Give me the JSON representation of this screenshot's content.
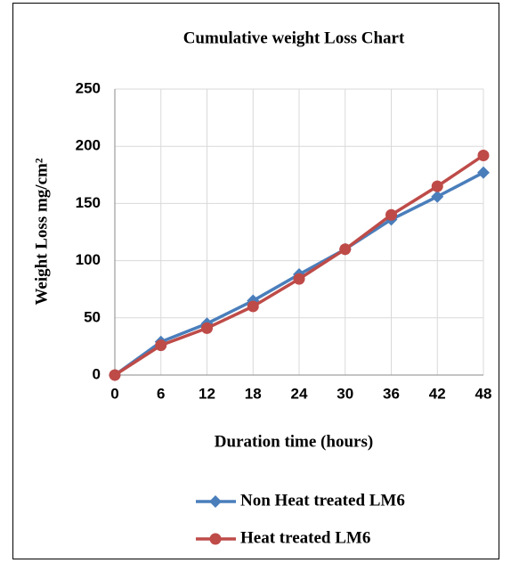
{
  "chart_data": {
    "type": "line",
    "title": "Cumulative weight Loss Chart",
    "x_label": "Duration time (hours)",
    "y_label": "Weight Loss mg/cm²",
    "x": [
      0,
      6,
      12,
      18,
      24,
      30,
      36,
      42,
      48
    ],
    "series": [
      {
        "name": "Non Heat treated LM6",
        "color": "#4a7ebb",
        "marker": "diamond",
        "values": [
          0,
          29,
          45,
          65,
          88,
          110,
          136,
          156,
          177
        ]
      },
      {
        "name": "Heat treated LM6",
        "color": "#be4b48",
        "marker": "circle",
        "values": [
          0,
          26,
          41,
          60,
          84,
          110,
          140,
          165,
          192
        ]
      }
    ],
    "xlim": [
      0,
      48
    ],
    "xticks": [
      0,
      6,
      12,
      18,
      24,
      30,
      36,
      42,
      48
    ],
    "ylim": [
      0,
      250
    ],
    "yticks": [
      0,
      50,
      100,
      150,
      200,
      250
    ],
    "grid": true
  }
}
